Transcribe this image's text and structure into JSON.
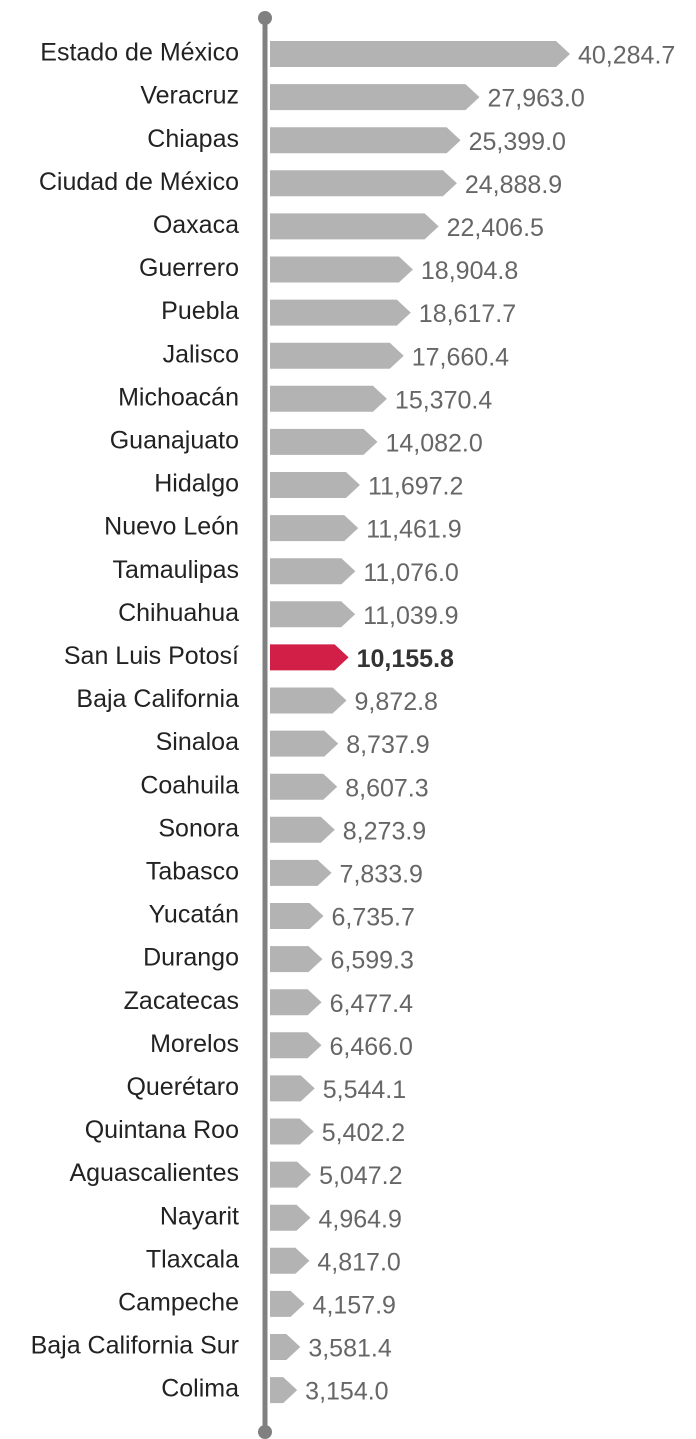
{
  "chart_data": {
    "type": "bar",
    "orientation": "horizontal",
    "categories": [
      "Estado de México",
      "Veracruz",
      "Chiapas",
      "Ciudad de México",
      "Oaxaca",
      "Guerrero",
      "Puebla",
      "Jalisco",
      "Michoacán",
      "Guanajuato",
      "Hidalgo",
      "Nuevo León",
      "Tamaulipas",
      "Chihuahua",
      "San Luis Potosí",
      "Baja California",
      "Sinaloa",
      "Coahuila",
      "Sonora",
      "Tabasco",
      "Yucatán",
      "Durango",
      "Zacatecas",
      "Morelos",
      "Querétaro",
      "Quintana Roo",
      "Aguascalientes",
      "Nayarit",
      "Tlaxcala",
      "Campeche",
      "Baja California Sur",
      "Colima"
    ],
    "values": [
      40284.7,
      27963.0,
      25399.0,
      24888.9,
      22406.5,
      18904.8,
      18617.7,
      17660.4,
      15370.4,
      14082.0,
      11697.2,
      11461.9,
      11076.0,
      11039.9,
      10155.8,
      9872.8,
      8737.9,
      8607.3,
      8273.9,
      7833.9,
      6735.7,
      6599.3,
      6477.4,
      6466.0,
      5544.1,
      5402.2,
      5047.2,
      4964.9,
      4817.0,
      4157.9,
      3581.4,
      3154.0
    ],
    "value_labels": [
      "40,284.7",
      "27,963.0",
      "25,399.0",
      "24,888.9",
      "22,406.5",
      "18,904.8",
      "18,617.7",
      "17,660.4",
      "15,370.4",
      "14,082.0",
      "11,697.2",
      "11,461.9",
      "11,076.0",
      "11,039.9",
      "10,155.8",
      "9,872.8",
      "8,737.9",
      "8,607.3",
      "8,273.9",
      "7,833.9",
      "6,735.7",
      "6,599.3",
      "6,477.4",
      "6,466.0",
      "5,544.1",
      "5,402.2",
      "5,047.2",
      "4,964.9",
      "4,817.0",
      "4,157.9",
      "3,581.4",
      "3,154.0"
    ],
    "colors": [
      "#b3b3b3",
      "#b3b3b3",
      "#b3b3b3",
      "#b3b3b3",
      "#b3b3b3",
      "#b3b3b3",
      "#b3b3b3",
      "#b3b3b3",
      "#b3b3b3",
      "#b3b3b3",
      "#b3b3b3",
      "#b3b3b3",
      "#b3b3b3",
      "#b3b3b3",
      "#d11f48",
      "#b3b3b3",
      "#b3b3b3",
      "#b3b3b3",
      "#b3b3b3",
      "#b3b3b3",
      "#b3b3b3",
      "#b3b3b3",
      "#b3b3b3",
      "#b3b3b3",
      "#b3b3b3",
      "#b3b3b3",
      "#b3b3b3",
      "#b3b3b3",
      "#b3b3b3",
      "#b3b3b3",
      "#b3b3b3",
      "#b3b3b3"
    ]
  }
}
